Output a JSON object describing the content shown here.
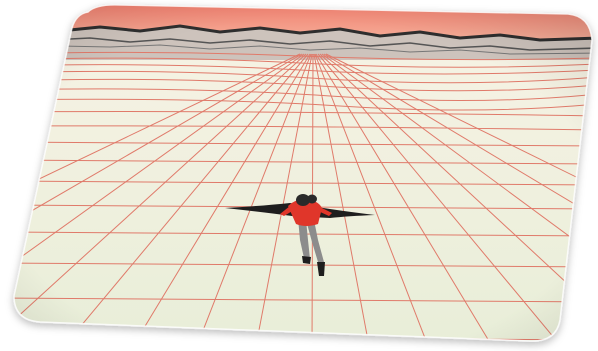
{
  "image": {
    "subject": "figure-on-wireframe-grid",
    "colors": {
      "sky_top": "#f07a6a",
      "sky_bottom": "#f8c8b0",
      "ground_near": "#eef2e2",
      "ground_far": "#f6f2e4",
      "grid_line": "#e07a6a",
      "terrain_line": "#3a3a3a",
      "terrain_fill": "#cfc6bf",
      "figure_shirt": "#e0362a",
      "figure_pants": "#8c8c8c",
      "figure_dark": "#1e1e1e",
      "card_border": "#e9e9e9"
    }
  }
}
